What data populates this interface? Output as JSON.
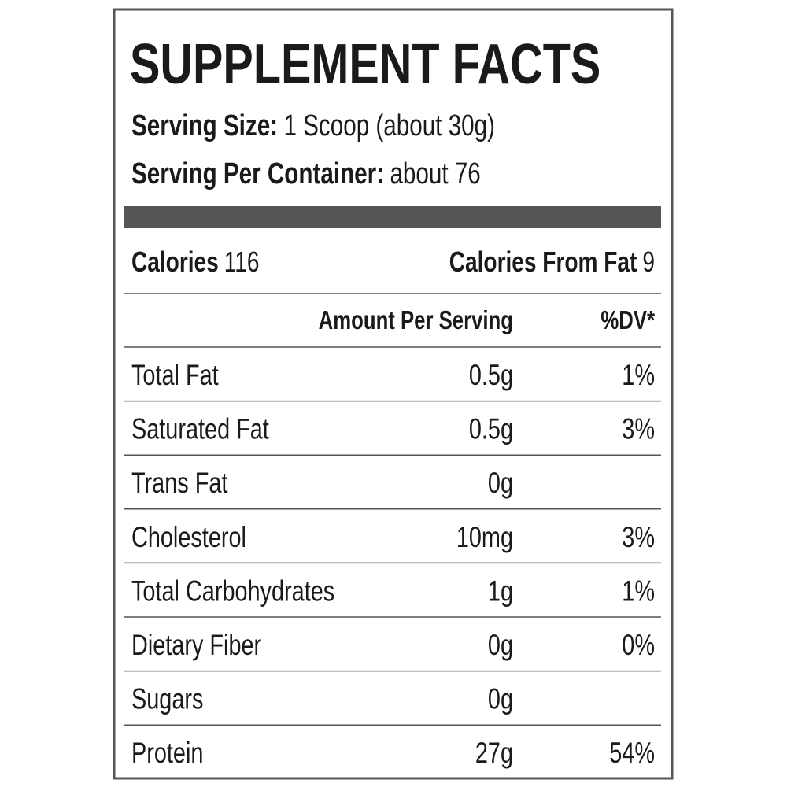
{
  "header": {
    "title": "SUPPLEMENT FACTS",
    "serving_size_label": "Serving Size:",
    "serving_size": "1 Scoop (about 30g)",
    "servings_label": "Serving Per Container:",
    "servings": "about 76"
  },
  "calories": {
    "label": "Calories",
    "value": 116,
    "fat_label": "Calories From Fat",
    "fat_value": 9
  },
  "table": {
    "columns": [
      "Amount Per Serving",
      "%DV*"
    ],
    "rows": [
      {
        "name": "Total Fat",
        "amount": "0.5g",
        "dv": "1%"
      },
      {
        "name": "Saturated Fat",
        "amount": "0.5g",
        "dv": "3%"
      },
      {
        "name": "Trans Fat",
        "amount": "0g"
      },
      {
        "name": "Cholesterol",
        "amount": "10mg",
        "dv": "3%"
      },
      {
        "name": "Total Carbohydrates",
        "amount": "1g",
        "dv": "1%"
      },
      {
        "name": "Dietary Fiber",
        "amount": "0g",
        "dv": "0%"
      },
      {
        "name": "Sugars",
        "amount": "0g"
      },
      {
        "name": "Protein",
        "amount": "27g",
        "dv": "54%"
      }
    ]
  }
}
